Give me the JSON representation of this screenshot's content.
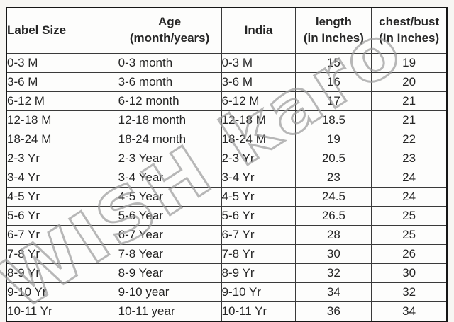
{
  "table": {
    "headers": [
      [
        "Label Size"
      ],
      [
        "Age",
        "(month/years)"
      ],
      [
        "India"
      ],
      [
        "length",
        "(in Inches)"
      ],
      [
        "chest/bust",
        "(In Inches)"
      ]
    ]
  },
  "chart_data": {
    "type": "table",
    "title": "Kids clothing size chart",
    "columns": [
      "Label Size",
      "Age (month/years)",
      "India",
      "length (in Inches)",
      "chest/bust (In Inches)"
    ],
    "rows": [
      [
        "0-3 M",
        "0-3 month",
        "0-3 M",
        "15",
        "19"
      ],
      [
        "3-6 M",
        "3-6 month",
        "3-6 M",
        "16",
        "20"
      ],
      [
        "6-12 M",
        "6-12 month",
        "6-12 M",
        "17",
        "21"
      ],
      [
        "12-18 M",
        "12-18 month",
        "12-18 M",
        "18.5",
        "21"
      ],
      [
        "18-24 M",
        "18-24 month",
        "18-24 M",
        "19",
        "22"
      ],
      [
        "2-3 Yr",
        "2-3 Year",
        "2-3 Yr",
        "20.5",
        "23"
      ],
      [
        "3-4 Yr",
        "3-4 Year",
        "3-4 Yr",
        "23",
        "24"
      ],
      [
        "4-5 Yr",
        "4-5 Year",
        "4-5 Yr",
        "24.5",
        "24"
      ],
      [
        "5-6 Yr",
        "5-6 Year",
        "5-6 Yr",
        "26.5",
        "25"
      ],
      [
        "6-7 Yr",
        "6-7 Year",
        "6-7 Yr",
        "28",
        "25"
      ],
      [
        "7-8 Yr",
        "7-8 Year",
        "7-8 Yr",
        "30",
        "26"
      ],
      [
        "8-9 Yr",
        "8-9 Year",
        "8-9 Yr",
        "32",
        "30"
      ],
      [
        "9-10 Yr",
        "9-10 year",
        "9-10 Yr",
        "34",
        "32"
      ],
      [
        "10-11 Yr",
        "10-11 year",
        "10-11 Yr",
        "36",
        "34"
      ]
    ]
  },
  "watermark": {
    "text": "WISH karo"
  },
  "colors": {
    "background": "#f7f6f3",
    "cell_background": "#fdfdfc",
    "border": "#161616",
    "text": "#262626",
    "watermark": "#9a9a9a"
  }
}
